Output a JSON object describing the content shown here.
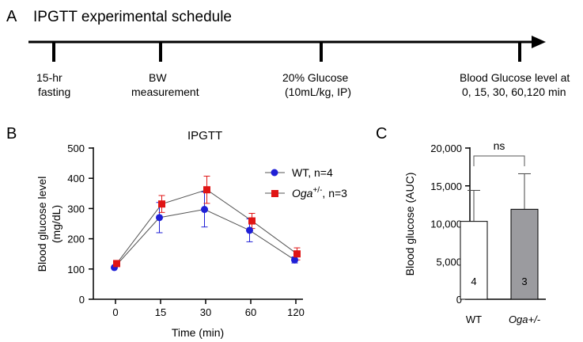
{
  "colors": {
    "wt": "#1f1fd6",
    "oga": "#e01515",
    "bar_oga": "#9b9b9f",
    "axis": "#000000",
    "err_line": "#444444"
  },
  "panel_a": {
    "letter": "A",
    "title": "IPGTT experimental schedule",
    "events": [
      {
        "lines": [
          "15-hr",
          "fasting"
        ]
      },
      {
        "lines": [
          "BW",
          "measurement"
        ]
      },
      {
        "lines": [
          "20% Glucose",
          "(10mL/kg, IP)"
        ]
      },
      {
        "lines": [
          "Blood Glucose level at",
          "0, 15, 30, 60,120 min"
        ]
      }
    ]
  },
  "chart_data": [
    {
      "type": "line",
      "panel_letter": "B",
      "title": "IPGTT",
      "xlabel": "Time (min)",
      "ylabel": "Blood glucose level",
      "ylabel_unit": "(mg/dL)",
      "categories": [
        "0",
        "15",
        "30",
        "60",
        "120"
      ],
      "ylim": [
        0,
        500
      ],
      "yticks": [
        0,
        100,
        200,
        300,
        400,
        500
      ],
      "series": [
        {
          "name": "WT",
          "legend_suffix": ", n=4",
          "marker": "circle",
          "values": [
            105,
            270,
            297,
            228,
            130
          ],
          "errors": [
            0,
            50,
            58,
            38,
            10
          ]
        },
        {
          "name": "Oga",
          "name_sup": "+/-",
          "legend_suffix": ", n=3",
          "marker": "square",
          "values": [
            118,
            315,
            362,
            259,
            150
          ],
          "errors": [
            0,
            28,
            45,
            25,
            20
          ]
        }
      ]
    },
    {
      "type": "bar",
      "panel_letter": "C",
      "ylabel": "Blood glucose (AUC)",
      "ylim": [
        0,
        20000
      ],
      "yticks": [
        "0",
        "5,000",
        "10,000",
        "15,000",
        "20,000"
      ],
      "categories": [
        "WT",
        "Oga+/-"
      ],
      "values": [
        10300,
        11900
      ],
      "errors": [
        4100,
        4700
      ],
      "n_labels": [
        "4",
        "3"
      ],
      "significance": "ns"
    }
  ]
}
